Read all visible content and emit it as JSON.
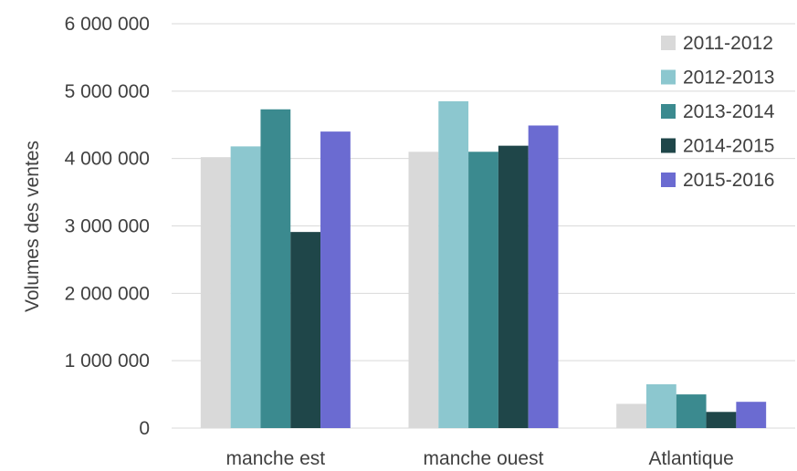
{
  "chart_data": {
    "type": "bar",
    "title": "",
    "xlabel": "",
    "ylabel": "Volumes des ventes",
    "categories": [
      "manche est",
      "manche ouest",
      "Atlantique"
    ],
    "series": [
      {
        "name": "2011-2012",
        "color": "#d9d9d9",
        "values": [
          4020000,
          4100000,
          360000
        ]
      },
      {
        "name": "2012-2013",
        "color": "#8cc7cf",
        "values": [
          4180000,
          4850000,
          650000
        ]
      },
      {
        "name": "2013-2014",
        "color": "#3b8a8f",
        "values": [
          4730000,
          4100000,
          500000
        ]
      },
      {
        "name": "2014-2015",
        "color": "#1f4649",
        "values": [
          2910000,
          4190000,
          240000
        ]
      },
      {
        "name": "2015-2016",
        "color": "#6b6bd1",
        "values": [
          4400000,
          4490000,
          390000
        ]
      }
    ],
    "yticks": [
      0,
      1000000,
      2000000,
      3000000,
      4000000,
      5000000,
      6000000
    ],
    "ytick_labels": [
      "0",
      "1 000 000",
      "2 000 000",
      "3 000 000",
      "4 000 000",
      "5 000 000",
      "6 000 000"
    ],
    "ylim": [
      0,
      6000000
    ],
    "grid": true,
    "legend_position": "top-right"
  }
}
